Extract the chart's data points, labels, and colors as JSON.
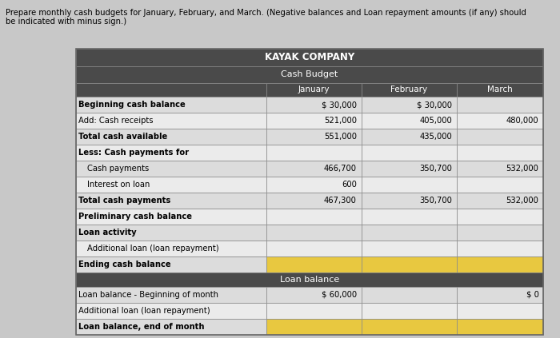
{
  "title1": "KAYAK COMPANY",
  "title2": "Cash Budget",
  "header_note": "Prepare monthly cash budgets for January, February, and March. (Negative balances and Loan repayment amounts (if any) should\nbe indicated with minus sign.)",
  "columns": [
    "",
    "January",
    "February",
    "March"
  ],
  "section1_rows": [
    {
      "label": "Beginning cash balance",
      "jan": "$ 30,000",
      "feb": "$ 30,000",
      "mar": ""
    },
    {
      "label": "Add: Cash receipts",
      "jan": "521,000",
      "feb": "405,000",
      "mar": "480,000"
    },
    {
      "label": "Total cash available",
      "jan": "551,000",
      "feb": "435,000",
      "mar": ""
    },
    {
      "label": "Less: Cash payments for",
      "jan": "",
      "feb": "",
      "mar": ""
    },
    {
      "label": "   Cash payments",
      "jan": "466,700",
      "feb": "350,700",
      "mar": "532,000"
    },
    {
      "label": "   Interest on loan",
      "jan": "600",
      "feb": "",
      "mar": ""
    },
    {
      "label": "Total cash payments",
      "jan": "467,300",
      "feb": "350,700",
      "mar": "532,000"
    },
    {
      "label": "Preliminary cash balance",
      "jan": "",
      "feb": "",
      "mar": ""
    },
    {
      "label": "Loan activity",
      "jan": "",
      "feb": "",
      "mar": ""
    },
    {
      "label": "   Additional loan (loan repayment)",
      "jan": "",
      "feb": "",
      "mar": ""
    },
    {
      "label": "Ending cash balance",
      "jan": "YELLOW",
      "feb": "YELLOW",
      "mar": "YELLOW"
    }
  ],
  "loan_header": "Loan balance",
  "section2_rows": [
    {
      "label": "Loan balance - Beginning of month",
      "jan": "$ 60,000",
      "feb": "",
      "mar": "$ 0"
    },
    {
      "label": "Additional loan (loan repayment)",
      "jan": "",
      "feb": "",
      "mar": ""
    },
    {
      "label": "Loan balance, end of month",
      "jan": "YELLOW",
      "feb": "YELLOW",
      "mar": "YELLOW"
    }
  ],
  "bg_color": "#d0d0d0",
  "header_bg": "#5a5a5a",
  "header_text": "#ffffff",
  "row_bg_light": "#e8e8e8",
  "row_bg_white": "#f5f5f5",
  "yellow_bg": "#f0d060",
  "loan_header_bg": "#5a5a5a",
  "table_border": "#888888"
}
